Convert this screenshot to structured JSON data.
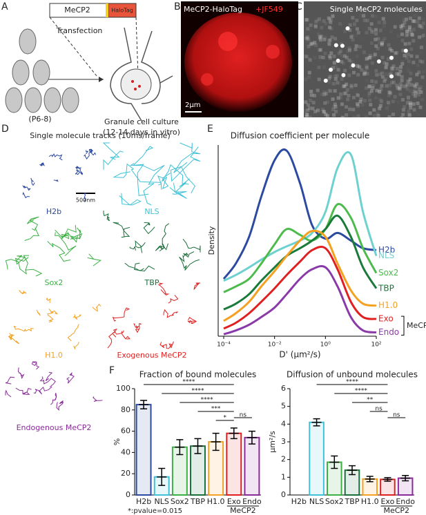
{
  "figure": {
    "labels": [
      "A",
      "B",
      "C",
      "D",
      "E",
      "F"
    ],
    "a": {
      "construct": [
        "MeCP2",
        "HaloTag"
      ],
      "transfection": "Transfection",
      "age": "(P6-8)",
      "culture": [
        "Granule cell culture",
        "(12-14 days in vitro)"
      ]
    },
    "b": {
      "title": "MeCP2-HaloTag",
      "dye": "+JF549",
      "scale": "2μm"
    },
    "c": {
      "title": "Single MeCP2 molecules"
    },
    "d": {
      "title": "Single molecule tracks (10ms/frame)",
      "scale": "500nm",
      "tracks": [
        "H2b",
        "NLS",
        "Sox2",
        "TBP",
        "H1.0",
        "Exogenous MeCP2",
        "Endogenous MeCP2"
      ],
      "colors": [
        "#2b4aa0",
        "#3ec1d6",
        "#3cb043",
        "#1a6e3a",
        "#f4a020",
        "#e02020",
        "#8a2a9a"
      ]
    }
  },
  "chart_data": [
    {
      "type": "line",
      "title": "Diffusion coefficient per molecule",
      "y_label": "Density",
      "x_label": "D' (μm²/s)",
      "log_x": true,
      "group_label": "MeCP2",
      "x": [
        0.0001,
        0.0003,
        0.001,
        0.003,
        0.01,
        0.03,
        0.1,
        0.3,
        1,
        3,
        10,
        30,
        100
      ],
      "xlim": [
        0.0001,
        100
      ],
      "xticks": [
        {
          "value": 0.0001,
          "label": "10⁻⁴"
        },
        {
          "value": 0.01,
          "label": "10⁻²"
        },
        {
          "value": 1,
          "label": "10⁰"
        },
        {
          "value": 100,
          "label": "10²"
        }
      ],
      "ylim": [
        0,
        10
      ],
      "series": [
        {
          "name": "H2b",
          "color": "#2b4aa0",
          "values": [
            3.0,
            3.8,
            5.2,
            7.3,
            9.2,
            9.7,
            8.0,
            5.8,
            5.1,
            5.4,
            5.0,
            4.6,
            4.5
          ]
        },
        {
          "name": "NLS",
          "color": "#6fd0d0",
          "values": [
            2.9,
            3.2,
            3.6,
            4.0,
            4.4,
            4.7,
            5.0,
            5.4,
            6.5,
            8.8,
            9.5,
            6.5,
            4.2
          ]
        },
        {
          "name": "Sox2",
          "color": "#4cbb4c",
          "values": [
            2.3,
            2.6,
            3.0,
            3.8,
            4.8,
            5.6,
            5.3,
            5.0,
            5.6,
            6.9,
            6.2,
            4.6,
            3.3
          ]
        },
        {
          "name": "TBP",
          "color": "#1a7a3a",
          "values": [
            1.4,
            1.7,
            2.2,
            2.9,
            3.6,
            4.2,
            4.6,
            5.0,
            5.6,
            6.3,
            5.2,
            3.6,
            2.5
          ]
        },
        {
          "name": "H1.0",
          "color": "#f4a020",
          "values": [
            0.8,
            1.2,
            1.8,
            2.6,
            3.4,
            4.2,
            5.0,
            5.5,
            5.2,
            3.8,
            2.4,
            1.7,
            1.6
          ]
        },
        {
          "name": "Exo",
          "color": "#e02020",
          "values": [
            0.4,
            0.7,
            1.2,
            1.8,
            2.5,
            3.2,
            3.9,
            4.5,
            4.6,
            3.5,
            1.8,
            1.0,
            0.9
          ]
        },
        {
          "name": "Endo",
          "color": "#8a3aa8",
          "values": [
            0.1,
            0.3,
            0.6,
            1.0,
            1.5,
            2.2,
            3.0,
            3.5,
            3.6,
            2.6,
            1.0,
            0.3,
            0.2
          ]
        }
      ]
    },
    {
      "type": "bar",
      "title": "Fraction of bound molecules",
      "y_label": "%",
      "group_label": "MeCP2",
      "footnote": "*:pvalue=0.015",
      "categories": [
        "H2b",
        "NLS",
        "Sox2",
        "TBP",
        "H1.0",
        "Exo",
        "Endo"
      ],
      "colors": [
        "#2b4aa0",
        "#3ec1d6",
        "#3cb043",
        "#1a6e3a",
        "#f4a020",
        "#e02020",
        "#8a2a9a"
      ],
      "values": [
        85,
        17,
        45,
        46,
        50,
        58,
        54
      ],
      "errors": [
        4,
        8,
        7,
        7,
        8,
        5,
        6
      ],
      "ylim": [
        0,
        100
      ],
      "yticks": [
        0,
        20,
        40,
        60,
        80,
        100
      ],
      "annotations": [
        "****",
        "****",
        "****",
        "***",
        "*",
        "ns"
      ]
    },
    {
      "type": "bar",
      "title": "Diffusion of unbound molecules",
      "y_label": "μm²/s",
      "group_label": "MeCP2",
      "categories": [
        "H2b",
        "NLS",
        "Sox2",
        "TBP",
        "H1.0",
        "Exo",
        "Endo"
      ],
      "colors": [
        "#2b4aa0",
        "#3ec1d6",
        "#3cb043",
        "#1a6e3a",
        "#f4a020",
        "#e02020",
        "#8a2a9a"
      ],
      "values": [
        null,
        4.1,
        1.85,
        1.4,
        0.9,
        0.88,
        0.95
      ],
      "errors": [
        null,
        0.2,
        0.35,
        0.25,
        0.15,
        0.1,
        0.15
      ],
      "ylim": [
        0,
        6
      ],
      "yticks": [
        0,
        1,
        2,
        3,
        4,
        5,
        6
      ],
      "annotations": [
        "****",
        "****",
        "**",
        "ns",
        "ns"
      ]
    }
  ]
}
